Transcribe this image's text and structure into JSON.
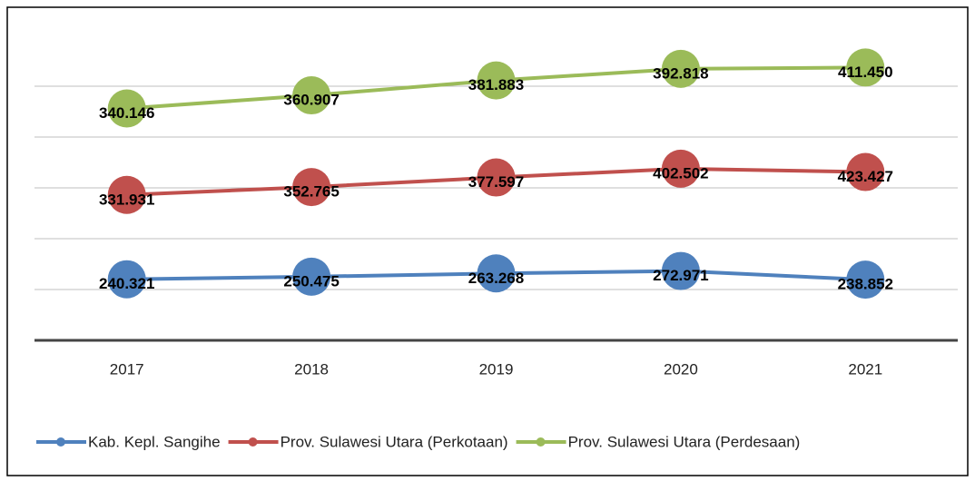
{
  "chart_data": {
    "type": "line",
    "stacked": true,
    "categories": [
      "2017",
      "2018",
      "2019",
      "2020",
      "2021"
    ],
    "series": [
      {
        "name": "Kab. Kepl. Sangihe",
        "color": "#4f81bd",
        "values": [
          240.321,
          250.475,
          263.268,
          272.971,
          238.852
        ],
        "value_labels": [
          "240.321",
          "250.475",
          "263.268",
          "272.971",
          "238.852"
        ]
      },
      {
        "name": "Prov. Sulawesi Utara (Perkotaan)",
        "color": "#c0504d",
        "values": [
          331.931,
          352.765,
          377.597,
          402.502,
          423.427
        ],
        "value_labels": [
          "331.931",
          "352.765",
          "377.597",
          "402.502",
          "423.427"
        ]
      },
      {
        "name": "Prov. Sulawesi Utara (Perdesaan)",
        "color": "#9bbb59",
        "values": [
          340.146,
          360.907,
          381.883,
          392.818,
          411.45
        ],
        "value_labels": [
          "340.146",
          "360.907",
          "381.883",
          "392.818",
          "411.450"
        ]
      }
    ],
    "ylim": [
      0,
      1200
    ],
    "yticks": [
      0,
      200,
      400,
      600,
      800,
      1000
    ],
    "grid": true,
    "legend": "bottom"
  }
}
